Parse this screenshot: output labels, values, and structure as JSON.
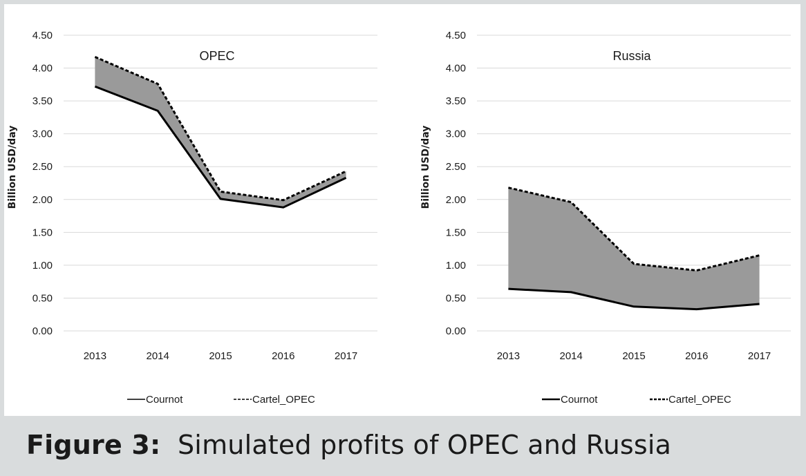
{
  "caption": {
    "label": "Figure 3:",
    "text": "Simulated profits of OPEC and Russia"
  },
  "colors": {
    "background": "#d9dcdd",
    "panel": "#ffffff",
    "line": "#000000",
    "gap_fill": "#9a9a9a",
    "grid": "#d9d9d9"
  },
  "chart_data": [
    {
      "type": "line",
      "title": "OPEC",
      "xlabel": "",
      "ylabel": "Billion USD/day",
      "categories": [
        "2013",
        "2014",
        "2015",
        "2016",
        "2017"
      ],
      "yticks": [
        "0.00",
        "0.50",
        "1.00",
        "1.50",
        "2.00",
        "2.50",
        "3.00",
        "3.50",
        "4.00",
        "4.50"
      ],
      "ylim": [
        0,
        4.5
      ],
      "grid": true,
      "legend_position": "bottom",
      "shaded_between_series": true,
      "series": [
        {
          "name": "Cournot",
          "style": "solid",
          "values": [
            3.72,
            3.35,
            2.01,
            1.88,
            2.33
          ]
        },
        {
          "name": "Cartel_OPEC",
          "style": "dashed",
          "values": [
            4.17,
            3.76,
            2.12,
            1.99,
            2.43
          ]
        }
      ]
    },
    {
      "type": "line",
      "title": "Russia",
      "xlabel": "",
      "ylabel": "Billion USD/day",
      "categories": [
        "2013",
        "2014",
        "2015",
        "2016",
        "2017"
      ],
      "yticks": [
        "0.00",
        "0.50",
        "1.00",
        "1.50",
        "2.00",
        "2.50",
        "3.00",
        "3.50",
        "4.00",
        "4.50"
      ],
      "ylim": [
        0,
        4.5
      ],
      "grid": true,
      "legend_position": "bottom",
      "shaded_between_series": true,
      "series": [
        {
          "name": "Cournot",
          "style": "solid",
          "values": [
            0.64,
            0.59,
            0.37,
            0.33,
            0.41
          ]
        },
        {
          "name": "Cartel_OPEC",
          "style": "dashed",
          "values": [
            2.18,
            1.96,
            1.02,
            0.92,
            1.15
          ]
        }
      ]
    }
  ]
}
